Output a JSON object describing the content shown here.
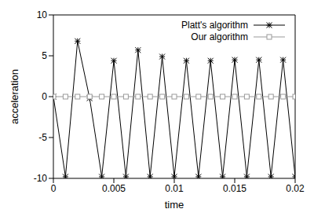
{
  "chart_data": {
    "type": "line",
    "x_label": "time",
    "y_label": "acceleration",
    "x": [
      0,
      0.001,
      0.002,
      0.003,
      0.004,
      0.005,
      0.006,
      0.007,
      0.008,
      0.009,
      0.01,
      0.011,
      0.012,
      0.013,
      0.014,
      0.015,
      0.016,
      0.017,
      0.018,
      0.019,
      0.02
    ],
    "series": [
      {
        "name": "Platt's algorithm",
        "color": "#000000",
        "marker": "star",
        "values": [
          0,
          -9.8,
          6.8,
          -0.2,
          -9.8,
          4.4,
          -9.8,
          5.7,
          -9.8,
          4.9,
          -9.8,
          4.4,
          -9.8,
          4.4,
          -9.8,
          4.5,
          -9.8,
          4.5,
          -9.8,
          4.5,
          -9.8
        ]
      },
      {
        "name": "Our algorithm",
        "color": "#999999",
        "marker": "square",
        "values": [
          0,
          0,
          0,
          0,
          0,
          0,
          0,
          0,
          0,
          0,
          0,
          0,
          0,
          0,
          0,
          0,
          0,
          0,
          0,
          0,
          0
        ]
      }
    ],
    "xlim": [
      0,
      0.02
    ],
    "xticks": [
      0,
      0.005,
      0.01,
      0.015,
      0.02
    ],
    "ylim": [
      -10,
      10
    ],
    "yticks": [
      -10,
      -5,
      0,
      5,
      10
    ],
    "grid": false,
    "legend": "upper right"
  }
}
